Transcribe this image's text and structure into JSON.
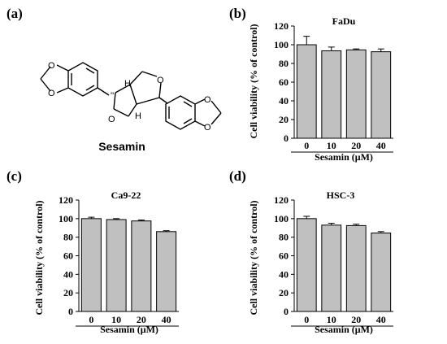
{
  "panel_a": {
    "label": "(a)",
    "compound_name": "Sesamin",
    "atoms": {
      "O": "O",
      "H": "H"
    }
  },
  "chart_data": [
    {
      "id": "b",
      "panel_label": "(b)",
      "type": "bar",
      "title": "FaDu",
      "categories": [
        "0",
        "10",
        "20",
        "40"
      ],
      "values": [
        100,
        93.5,
        94.5,
        92.5
      ],
      "errors": [
        9,
        4,
        1,
        3
      ],
      "xlabel": "Sesamin (μM)",
      "ylabel": "Cell viability (% of control)",
      "ylim": [
        0,
        120
      ],
      "yticks": [
        "0",
        "20",
        "40",
        "60",
        "80",
        "100",
        "120"
      ]
    },
    {
      "id": "c",
      "panel_label": "(c)",
      "type": "bar",
      "title": "Ca9-22",
      "categories": [
        "0",
        "10",
        "20",
        "40"
      ],
      "values": [
        100,
        99,
        97.5,
        86
      ],
      "errors": [
        1.5,
        1,
        1,
        1
      ],
      "xlabel": "Sesamin (μM)",
      "ylabel": "Cell viability (% of control)",
      "ylim": [
        0,
        120
      ],
      "yticks": [
        "0",
        "20",
        "40",
        "60",
        "80",
        "100",
        "120"
      ]
    },
    {
      "id": "d",
      "panel_label": "(d)",
      "type": "bar",
      "title": "HSC-3",
      "categories": [
        "0",
        "10",
        "20",
        "40"
      ],
      "values": [
        100,
        93,
        92.5,
        84.5
      ],
      "errors": [
        2.5,
        2,
        1.5,
        1.5
      ],
      "xlabel": "Sesamin (μM)",
      "ylabel": "Cell viability (% of control)",
      "ylim": [
        0,
        120
      ],
      "yticks": [
        "0",
        "20",
        "40",
        "60",
        "80",
        "100",
        "120"
      ]
    }
  ]
}
